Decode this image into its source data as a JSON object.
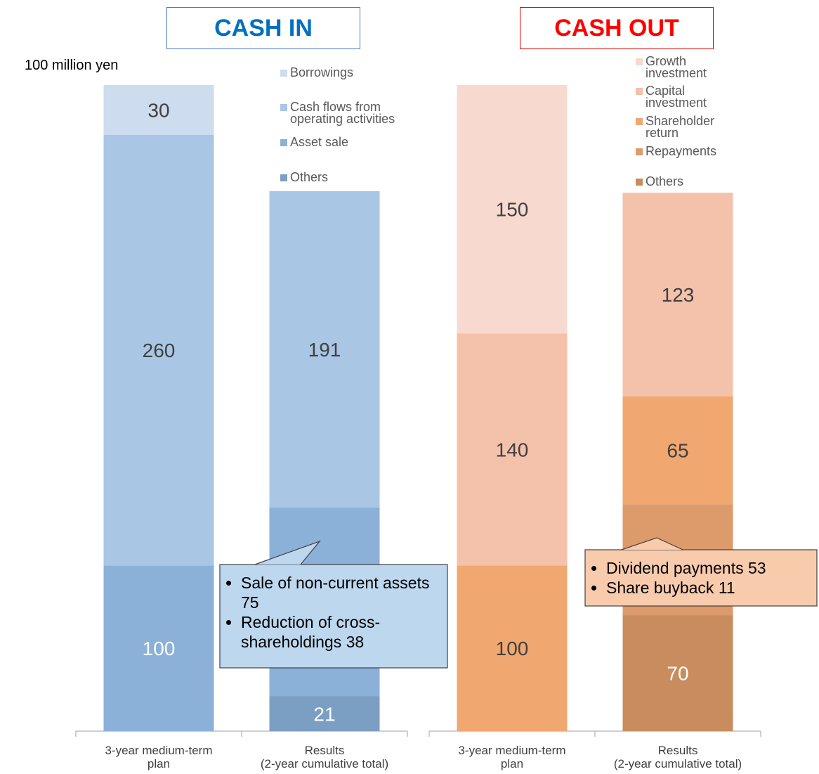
{
  "chart_data": [
    {
      "type": "stacked_bar",
      "title": "CASH IN",
      "y_label": "100 million yen",
      "categories": [
        "3-year medium-term\nplan",
        "Results\n(2-year cumulative total)"
      ],
      "series": [
        {
          "name": "Borrowings",
          "color": "#cddcee",
          "label_color": "#404040",
          "values": [
            30,
            null
          ]
        },
        {
          "name": "Cash flows from\noperating activities",
          "color": "#a9c6e5",
          "label_color": "#404040",
          "values": [
            260,
            191
          ]
        },
        {
          "name": "Asset sale",
          "color": "#8bb1d8",
          "label_color": "#ffffff",
          "values": [
            100,
            114
          ]
        },
        {
          "name": "Others",
          "color": "#7b9fc2",
          "label_color": "#ffffff",
          "values": [
            null,
            21
          ]
        }
      ],
      "annotation": [
        "Sale of non-current assets 75",
        "Reduction of cross-shareholdings 38"
      ]
    },
    {
      "type": "stacked_bar",
      "title": "CASH OUT",
      "categories": [
        "3-year medium-term\nplan",
        "Results\n(2-year cumulative total)"
      ],
      "series": [
        {
          "name": "Growth\ninvestment",
          "color": "#f8d9cf",
          "label_color": "#404040",
          "values": [
            150,
            null
          ]
        },
        {
          "name": "Capital\ninvestment",
          "color": "#f4c1aa",
          "label_color": "#404040",
          "values": [
            140,
            123
          ]
        },
        {
          "name": "Shareholder\nreturn",
          "color": "#f0a770",
          "label_color": "#404040",
          "values": [
            100,
            65
          ]
        },
        {
          "name": "Repayments",
          "color": "#dd9a6b",
          "label_color": "#ffffff",
          "values": [
            null,
            67
          ]
        },
        {
          "name": "Others",
          "color": "#c98c5f",
          "label_color": "#ffffff",
          "values": [
            null,
            70
          ]
        }
      ],
      "annotation": [
        "Dividend payments 53",
        "Share buyback 11"
      ]
    }
  ]
}
